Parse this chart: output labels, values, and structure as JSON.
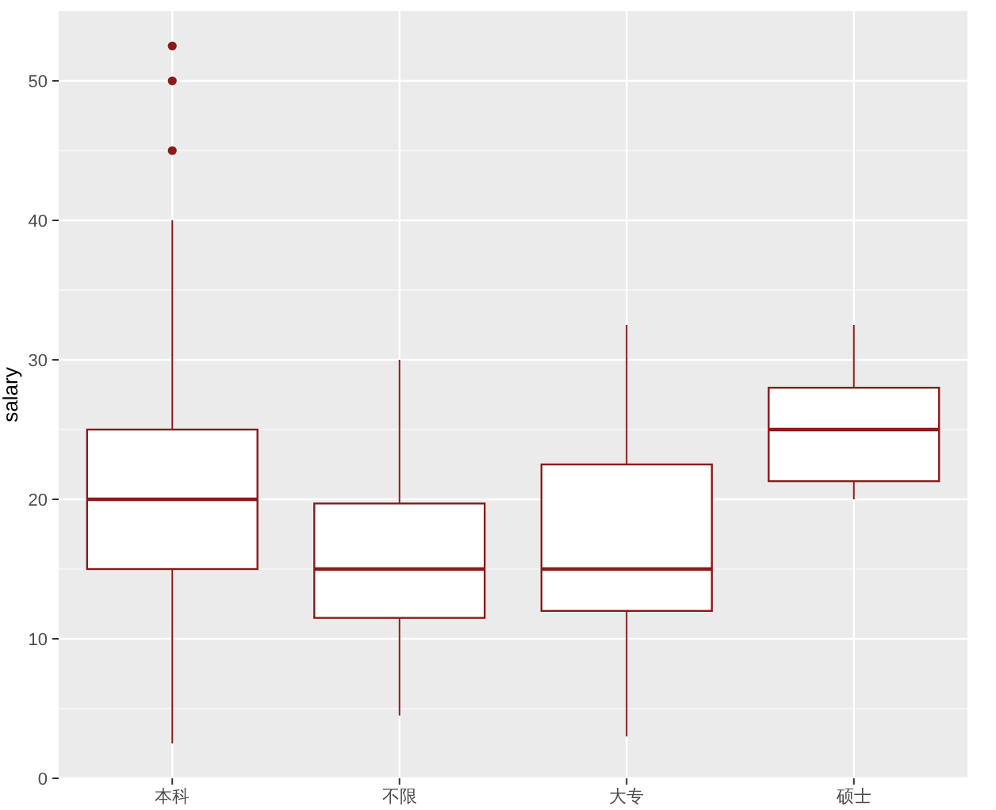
{
  "chart_data": {
    "type": "box",
    "ylabel": "salary",
    "categories": [
      "本科",
      "不限",
      "大专",
      "硕士"
    ],
    "ylim": [
      0,
      55
    ],
    "yticks": [
      0,
      10,
      20,
      30,
      40,
      50
    ],
    "grid": true,
    "color": "#8b1a1a",
    "boxes": [
      {
        "low": 2.5,
        "q1": 15,
        "median": 20,
        "q3": 25,
        "high": 40,
        "outliers": [
          45,
          50,
          52.5
        ]
      },
      {
        "low": 4.5,
        "q1": 11.5,
        "median": 15,
        "q3": 19.7,
        "high": 30
      },
      {
        "low": 3,
        "q1": 12,
        "median": 15,
        "q3": 22.5,
        "high": 32.5
      },
      {
        "low": 20,
        "q1": 21.3,
        "median": 25,
        "q3": 28,
        "high": 32.5
      }
    ]
  }
}
